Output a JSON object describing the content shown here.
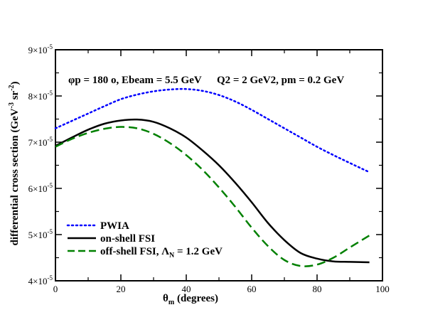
{
  "chart_data": {
    "type": "line",
    "xlabel": "θ_m (degrees)",
    "xlabel_parts": {
      "main": "θ",
      "sub": "m",
      "rest": " (degrees)"
    },
    "ylabel": "differential cross section (GeV^-3 sr^-2)",
    "ylabel_parts": {
      "main": "differential cross section (GeV",
      "sup1": "-3",
      "mid": " sr",
      "sup2": "-2",
      "end": ")"
    },
    "xlim": [
      0,
      100
    ],
    "ylim": [
      4e-05,
      9e-05
    ],
    "x_ticks": [
      {
        "value": 0,
        "label": "0"
      },
      {
        "value": 20,
        "label": "20"
      },
      {
        "value": 40,
        "label": "40"
      },
      {
        "value": 60,
        "label": "60"
      },
      {
        "value": 80,
        "label": "80"
      },
      {
        "value": 100,
        "label": "100"
      }
    ],
    "y_ticks": [
      {
        "value": 4e-05,
        "mantissa": "4",
        "base": "×10",
        "exp": "-5"
      },
      {
        "value": 5e-05,
        "mantissa": "5",
        "base": "×10",
        "exp": "-5"
      },
      {
        "value": 6e-05,
        "mantissa": "6",
        "base": "×10",
        "exp": "-5"
      },
      {
        "value": 7e-05,
        "mantissa": "7",
        "base": "×10",
        "exp": "-5"
      },
      {
        "value": 8e-05,
        "mantissa": "8",
        "base": "×10",
        "exp": "-5"
      },
      {
        "value": 9e-05,
        "mantissa": "9",
        "base": "×10",
        "exp": "-5"
      }
    ],
    "annotations": {
      "left": "φp = 180 o, Ebeam = 5.5 GeV",
      "right": "Q2 = 2 GeV2, pm = 0.2 GeV"
    },
    "legend_position": "bottom-left",
    "series": [
      {
        "name": "PWIA",
        "color": "#0000ff",
        "style": "dotted",
        "x": [
          0,
          5,
          10,
          15,
          20,
          25,
          30,
          35,
          40,
          45,
          50,
          55,
          60,
          65,
          70,
          75,
          80,
          85,
          90,
          96
        ],
        "y": [
          7.3e-05,
          7.46e-05,
          7.62e-05,
          7.78e-05,
          7.93e-05,
          8.03e-05,
          8.1e-05,
          8.14e-05,
          8.15e-05,
          8.11e-05,
          8.02e-05,
          7.88e-05,
          7.7e-05,
          7.5e-05,
          7.3e-05,
          7.1e-05,
          6.9e-05,
          6.72e-05,
          6.55e-05,
          6.35e-05
        ]
      },
      {
        "name": "on-shell FSI",
        "color": "#000000",
        "style": "solid",
        "x": [
          0,
          5,
          10,
          15,
          20,
          25,
          30,
          35,
          40,
          45,
          50,
          55,
          60,
          65,
          70,
          75,
          80,
          85,
          90,
          96
        ],
        "y": [
          6.92e-05,
          7.1e-05,
          7.27e-05,
          7.4e-05,
          7.47e-05,
          7.49e-05,
          7.44e-05,
          7.3e-05,
          7.1e-05,
          6.82e-05,
          6.5e-05,
          6.12e-05,
          5.7e-05,
          5.25e-05,
          4.88e-05,
          4.6e-05,
          4.48e-05,
          4.42e-05,
          4.41e-05,
          4.4e-05
        ]
      },
      {
        "name": "off-shell FSI, ΛN = 1.2 GeV",
        "label_parts": {
          "main": "off-shell FSI, Λ",
          "sub": "N",
          "rest": " = 1.2 GeV"
        },
        "color": "#008000",
        "style": "dashed",
        "x": [
          0,
          5,
          10,
          15,
          20,
          25,
          30,
          35,
          40,
          45,
          50,
          55,
          60,
          65,
          70,
          75,
          80,
          85,
          90,
          96
        ],
        "y": [
          6.9e-05,
          7.07e-05,
          7.2e-05,
          7.29e-05,
          7.33e-05,
          7.3e-05,
          7.18e-05,
          6.98e-05,
          6.72e-05,
          6.4e-05,
          6.02e-05,
          5.6e-05,
          5.15e-05,
          4.75e-05,
          4.45e-05,
          4.32e-05,
          4.35e-05,
          4.5e-05,
          4.72e-05,
          4.98e-05
        ]
      }
    ]
  }
}
